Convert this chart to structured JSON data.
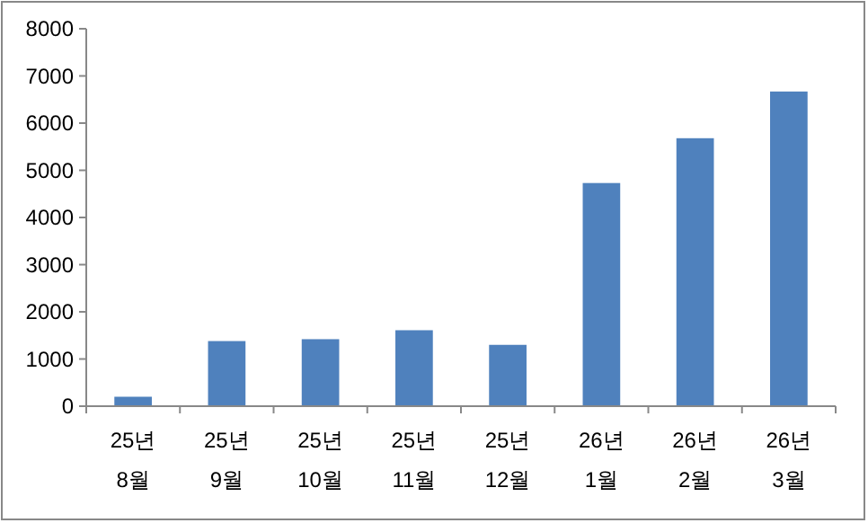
{
  "chart_data": {
    "type": "bar",
    "categories": [
      "25년\n8월",
      "25년\n9월",
      "25년\n10월",
      "25년\n11월",
      "25년\n12월",
      "26년\n1월",
      "26년\n2월",
      "26년\n3월"
    ],
    "values": [
      200,
      1380,
      1420,
      1610,
      1300,
      4730,
      5680,
      6670
    ],
    "color": "#4f81bd",
    "ylim": [
      0,
      8000
    ],
    "yticks": [
      0,
      1000,
      2000,
      3000,
      4000,
      5000,
      6000,
      7000,
      8000
    ],
    "grid": false
  }
}
